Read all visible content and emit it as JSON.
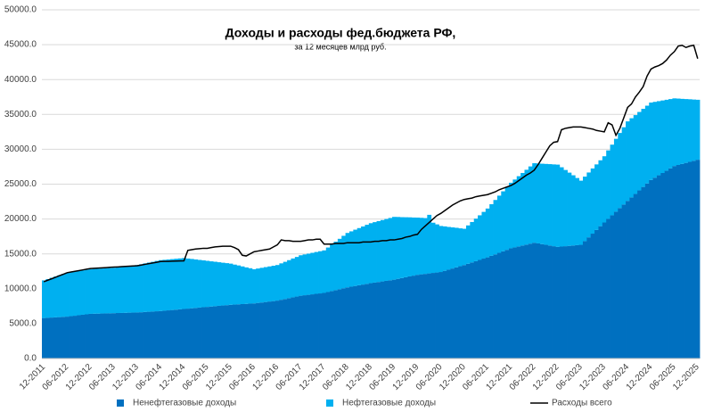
{
  "chart_data": {
    "type": "stacked-bar-line",
    "title": "Доходы и расходы фед.бюджета РФ,",
    "subtitle": "за 12 месяцев млрд руб.",
    "categories": [
      "12-2011",
      null,
      null,
      null,
      null,
      null,
      "06-2012",
      null,
      null,
      null,
      null,
      null,
      "12-2012",
      null,
      null,
      null,
      null,
      null,
      "06-2013",
      null,
      null,
      null,
      null,
      null,
      "12-2013",
      null,
      null,
      null,
      null,
      null,
      "06-2014",
      null,
      null,
      null,
      null,
      null,
      "12-2014",
      null,
      null,
      null,
      null,
      null,
      "06-2015",
      null,
      null,
      null,
      null,
      null,
      "12-2015",
      null,
      null,
      null,
      null,
      null,
      "06-2016",
      null,
      null,
      null,
      null,
      null,
      "12-2016",
      null,
      null,
      null,
      null,
      null,
      "06-2017",
      null,
      null,
      null,
      null,
      null,
      "12-2017",
      null,
      null,
      null,
      null,
      null,
      "06-2018",
      null,
      null,
      null,
      null,
      null,
      "12-2018",
      null,
      null,
      null,
      null,
      null,
      "06-2019",
      null,
      null,
      null,
      null,
      null,
      "12-2019",
      null,
      null,
      null,
      null,
      null,
      "06-2020",
      null,
      null,
      null,
      null,
      null,
      "12-2020",
      null,
      null,
      null,
      null,
      null,
      "06-2021",
      null,
      null,
      null,
      null,
      null,
      "12-2021",
      null,
      null,
      null,
      null,
      null,
      "06-2022",
      null,
      null,
      null,
      null,
      null,
      "12-2022",
      null,
      null,
      null,
      null,
      null,
      "06-2023",
      null,
      null,
      null,
      null,
      null,
      "12-2023",
      null,
      null,
      null,
      null,
      null,
      "06-2024",
      null,
      null,
      null,
      null,
      null,
      "12-2024",
      null,
      null,
      null,
      null,
      null,
      "06-2025",
      null,
      null,
      null,
      null,
      null,
      "12-2025"
    ],
    "series": [
      {
        "name": "Ненефтегазовые доходы",
        "color": "#0070c0",
        "kind": "bar",
        "values": [
          5800,
          5830,
          5870,
          5900,
          5930,
          5970,
          6000,
          6070,
          6130,
          6200,
          6270,
          6330,
          6400,
          6420,
          6430,
          6450,
          6470,
          6480,
          6500,
          6520,
          6530,
          6550,
          6570,
          6580,
          6600,
          6630,
          6670,
          6700,
          6730,
          6770,
          6800,
          6850,
          6900,
          6950,
          7000,
          7050,
          7100,
          7150,
          7200,
          7250,
          7300,
          7350,
          7400,
          7450,
          7500,
          7550,
          7600,
          7650,
          7700,
          7730,
          7770,
          7800,
          7830,
          7870,
          7900,
          7970,
          8030,
          8100,
          8170,
          8230,
          8300,
          8420,
          8530,
          8650,
          8770,
          8880,
          9000,
          9070,
          9130,
          9200,
          9270,
          9330,
          9400,
          9530,
          9670,
          9800,
          9930,
          10070,
          10200,
          10300,
          10400,
          10500,
          10600,
          10700,
          10800,
          10880,
          10970,
          11050,
          11130,
          11220,
          11300,
          11420,
          11530,
          11650,
          11770,
          11880,
          12000,
          12070,
          12130,
          12200,
          12270,
          12330,
          12400,
          12570,
          12730,
          12900,
          13070,
          13230,
          13400,
          13580,
          13770,
          13950,
          14130,
          14320,
          14500,
          14720,
          14930,
          15150,
          15370,
          15580,
          15800,
          15930,
          16070,
          16200,
          16330,
          16470,
          16600,
          16500,
          16400,
          16300,
          16200,
          16100,
          16000,
          16050,
          16100,
          16150,
          16200,
          16250,
          16300,
          16830,
          17370,
          17900,
          18430,
          18970,
          19500,
          20020,
          20530,
          21050,
          21570,
          22080,
          22600,
          23100,
          23600,
          24100,
          24600,
          25100,
          25600,
          25930,
          26270,
          26600,
          26930,
          27270,
          27600,
          27750,
          27900,
          28050,
          28200,
          28350,
          28500
        ]
      },
      {
        "name": "Нефтегазовые доходы",
        "color": "#00b0f0",
        "kind": "bar",
        "values": [
          5400,
          5550,
          5700,
          5850,
          6000,
          6150,
          6300,
          6320,
          6330,
          6350,
          6370,
          6380,
          6400,
          6420,
          6430,
          6450,
          6470,
          6480,
          6500,
          6550,
          6600,
          6650,
          6700,
          6750,
          6800,
          6880,
          6970,
          7050,
          7130,
          7220,
          7300,
          7300,
          7300,
          7300,
          7300,
          7300,
          7300,
          7180,
          7070,
          6950,
          6830,
          6720,
          6600,
          6480,
          6370,
          6250,
          6130,
          6020,
          5900,
          5730,
          5570,
          5400,
          5230,
          5070,
          4900,
          4930,
          4970,
          5000,
          5030,
          5070,
          5100,
          5220,
          5330,
          5450,
          5570,
          5680,
          5800,
          5850,
          5900,
          5950,
          6000,
          6050,
          6100,
          6380,
          6670,
          6950,
          7230,
          7520,
          7800,
          7930,
          8070,
          8200,
          8330,
          8470,
          8600,
          8670,
          8730,
          8800,
          8870,
          8930,
          9000,
          8870,
          8730,
          8600,
          8470,
          8330,
          8200,
          8100,
          8000,
          8400,
          7200,
          6900,
          6600,
          6370,
          6130,
          5900,
          5670,
          5430,
          5200,
          5500,
          5800,
          6100,
          6400,
          6700,
          7000,
          7400,
          7800,
          8200,
          8600,
          9000,
          9400,
          9730,
          10070,
          10400,
          10730,
          11070,
          11400,
          11470,
          11530,
          11600,
          11670,
          11730,
          11800,
          11370,
          10930,
          10500,
          10070,
          9630,
          9200,
          9250,
          9300,
          9350,
          9400,
          9450,
          9500,
          9820,
          10130,
          10450,
          10770,
          11080,
          11400,
          11350,
          11300,
          11250,
          11200,
          11150,
          11100,
          10870,
          10630,
          10400,
          10170,
          9930,
          9700,
          9520,
          9330,
          9150,
          8970,
          8780,
          8600
        ]
      },
      {
        "name": "Расходы всего",
        "color": "#000000",
        "kind": "line",
        "values": [
          11000,
          11220,
          11430,
          11650,
          11870,
          12080,
          12300,
          12400,
          12500,
          12600,
          12700,
          12800,
          12900,
          12930,
          12970,
          13000,
          13030,
          13070,
          13100,
          13130,
          13170,
          13200,
          13230,
          13270,
          13300,
          13400,
          13500,
          13600,
          13700,
          13800,
          13900,
          13920,
          13930,
          13950,
          13970,
          13980,
          14000,
          15500,
          15600,
          15700,
          15750,
          15800,
          15800,
          15900,
          16000,
          16050,
          16100,
          16100,
          16100,
          15900,
          15600,
          14800,
          14700,
          15000,
          15300,
          15400,
          15500,
          15600,
          15700,
          16000,
          16300,
          17000,
          16900,
          16900,
          16800,
          16800,
          16800,
          16900,
          17000,
          17000,
          17100,
          17100,
          16400,
          16400,
          16400,
          16500,
          16500,
          16500,
          16600,
          16600,
          16600,
          16600,
          16700,
          16700,
          16700,
          16800,
          16800,
          16900,
          16900,
          17000,
          17000,
          17100,
          17200,
          17400,
          17500,
          17700,
          17800,
          18500,
          19000,
          19500,
          20000,
          20500,
          20800,
          21200,
          21600,
          22000,
          22300,
          22600,
          22800,
          22900,
          23000,
          23200,
          23300,
          23400,
          23500,
          23700,
          23900,
          24200,
          24400,
          24600,
          24800,
          25100,
          25500,
          25900,
          26300,
          26600,
          27000,
          27800,
          28700,
          29600,
          30500,
          31000,
          31100,
          32800,
          33000,
          33100,
          33200,
          33200,
          33200,
          33100,
          33000,
          32900,
          32700,
          32600,
          32500,
          33800,
          33500,
          32000,
          33000,
          34500,
          36000,
          36500,
          37500,
          38200,
          39000,
          40500,
          41500,
          41800,
          42000,
          42300,
          42800,
          43500,
          44000,
          44800,
          44900,
          44600,
          44800,
          44900,
          43000
        ]
      }
    ],
    "ylim": [
      0,
      50000
    ],
    "yticks": [
      {
        "value": 0,
        "label": "0.0"
      },
      {
        "value": 5000,
        "label": "5000.0"
      },
      {
        "value": 10000,
        "label": "10000.0"
      },
      {
        "value": 15000,
        "label": "15000.0"
      },
      {
        "value": 20000,
        "label": "20000.0"
      },
      {
        "value": 25000,
        "label": "25000.0"
      },
      {
        "value": 30000,
        "label": "30000.0"
      },
      {
        "value": 35000,
        "label": "35000.0"
      },
      {
        "value": 40000,
        "label": "40000.0"
      },
      {
        "value": 45000,
        "label": "45000.0"
      },
      {
        "value": 50000,
        "label": "50000.0"
      }
    ],
    "grid": true,
    "legend": "bottom"
  }
}
